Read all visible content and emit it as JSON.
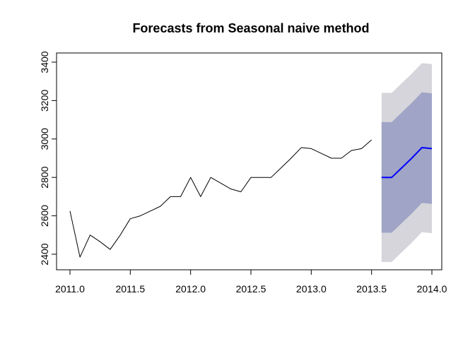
{
  "chart_data": {
    "type": "line",
    "title": "Forecasts from Seasonal naive method",
    "xlabel": "",
    "ylabel": "",
    "xlim": [
      2011.0,
      2014.0
    ],
    "ylim": [
      2330,
      3420
    ],
    "x_ticks": [
      2011.0,
      2011.5,
      2012.0,
      2012.5,
      2013.0,
      2013.5,
      2014.0
    ],
    "x_tick_labels": [
      "2011.0",
      "2011.5",
      "2012.0",
      "2012.5",
      "2013.0",
      "2013.5",
      "2014.0"
    ],
    "y_ticks": [
      2400,
      2600,
      2800,
      3000,
      3200,
      3400
    ],
    "y_tick_labels": [
      "2400",
      "2600",
      "2800",
      "3000",
      "3200",
      "3400"
    ],
    "grid": false,
    "series": [
      {
        "role": "observed",
        "color": "#000000",
        "x": [
          2011.0,
          2011.083,
          2011.167,
          2011.25,
          2011.333,
          2011.417,
          2011.5,
          2011.583,
          2011.667,
          2011.75,
          2011.833,
          2011.917,
          2012.0,
          2012.083,
          2012.167,
          2012.25,
          2012.333,
          2012.417,
          2012.5,
          2012.583,
          2012.667,
          2012.75,
          2012.833,
          2012.917,
          2013.0,
          2013.083,
          2013.167,
          2013.25,
          2013.333,
          2013.417,
          2013.5
        ],
        "y": [
          2625,
          2385,
          2500,
          2465,
          2425,
          2500,
          2585,
          2600,
          2625,
          2650,
          2700,
          2700,
          2800,
          2700,
          2800,
          2770,
          2740,
          2725,
          2800,
          2800,
          2800,
          2850,
          2900,
          2955,
          2950,
          2925,
          2900,
          2900,
          2940,
          2950,
          2995
        ]
      },
      {
        "role": "point-forecast",
        "color": "#0000ff",
        "x": [
          2013.583,
          2013.667,
          2013.75,
          2013.833,
          2013.917,
          2014.0
        ],
        "y": [
          2800,
          2800,
          2850,
          2900,
          2955,
          2950
        ]
      }
    ],
    "intervals": [
      {
        "level": "95%",
        "color": "#d5d5db",
        "x": [
          2013.583,
          2013.667,
          2013.75,
          2013.833,
          2013.917,
          2014.0
        ],
        "lower": [
          2360,
          2360,
          2410,
          2460,
          2515,
          2510
        ],
        "upper": [
          3240,
          3240,
          3290,
          3340,
          3395,
          3390
        ]
      },
      {
        "level": "80%",
        "color": "#a0a4c6",
        "x": [
          2013.583,
          2013.667,
          2013.75,
          2013.833,
          2013.917,
          2014.0
        ],
        "lower": [
          2512,
          2512,
          2562,
          2612,
          2667,
          2662
        ],
        "upper": [
          3088,
          3088,
          3138,
          3188,
          3243,
          3238
        ]
      }
    ]
  }
}
